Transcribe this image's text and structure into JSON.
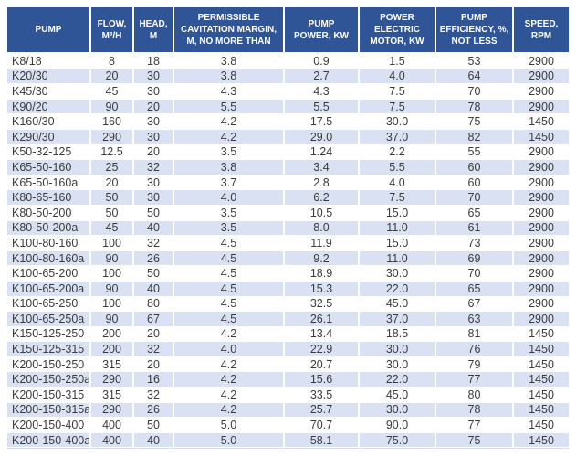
{
  "colors": {
    "header_bg": "#2f5597",
    "header_text": "#ffffff",
    "banded_row_bg": "#d9e1f2",
    "plain_row_bg": "#ffffff",
    "body_text": "#3b3b3b"
  },
  "table": {
    "headers": [
      "PUMP",
      "FLOW,\nM³/H",
      "HEAD,\nM",
      "PERMISSIBLE\nCAVITATION MARGIN,\nM, NO MORE THAN",
      "PUMP\nPOWER, KW",
      "POWER\nELECTRIC\nMOTOR, KW",
      "PUMP\nEFFICIENCY, %,\nNOT LESS",
      "SPEED,\nRPM"
    ],
    "rows": [
      [
        "K8/18",
        "8",
        "18",
        "3.8",
        "0.9",
        "1.5",
        "53",
        "2900"
      ],
      [
        "K20/30",
        "20",
        "30",
        "3.8",
        "2.7",
        "4.0",
        "64",
        "2900"
      ],
      [
        "K45/30",
        "45",
        "30",
        "4.3",
        "4.3",
        "7.5",
        "70",
        "2900"
      ],
      [
        "K90/20",
        "90",
        "20",
        "5.5",
        "5.5",
        "7.5",
        "78",
        "2900"
      ],
      [
        "K160/30",
        "160",
        "30",
        "4.2",
        "17.5",
        "30.0",
        "75",
        "1450"
      ],
      [
        "K290/30",
        "290",
        "30",
        "4.2",
        "29.0",
        "37.0",
        "82",
        "1450"
      ],
      [
        "K50-32-125",
        "12.5",
        "20",
        "3.5",
        "1.24",
        "2.2",
        "55",
        "2900"
      ],
      [
        "K65-50-160",
        "25",
        "32",
        "3.8",
        "3.4",
        "5.5",
        "60",
        "2900"
      ],
      [
        "K65-50-160a",
        "20",
        "30",
        "3.7",
        "2.8",
        "4.0",
        "60",
        "2900"
      ],
      [
        "K80-65-160",
        "50",
        "30",
        "4.0",
        "6.2",
        "7.5",
        "70",
        "2900"
      ],
      [
        "K80-50-200",
        "50",
        "50",
        "3.5",
        "10.5",
        "15.0",
        "65",
        "2900"
      ],
      [
        "K80-50-200a",
        "45",
        "40",
        "3.5",
        "8.0",
        "11.0",
        "61",
        "2900"
      ],
      [
        "K100-80-160",
        "100",
        "32",
        "4.5",
        "11.9",
        "15.0",
        "73",
        "2900"
      ],
      [
        "K100-80-160a",
        "90",
        "26",
        "4.5",
        "9.2",
        "11.0",
        "69",
        "2900"
      ],
      [
        "K100-65-200",
        "100",
        "50",
        "4.5",
        "18.9",
        "30.0",
        "70",
        "2900"
      ],
      [
        "K100-65-200a",
        "90",
        "40",
        "4.5",
        "15.3",
        "22.0",
        "65",
        "2900"
      ],
      [
        "K100-65-250",
        "100",
        "80",
        "4.5",
        "32.5",
        "45.0",
        "67",
        "2900"
      ],
      [
        "K100-65-250a",
        "90",
        "67",
        "4.5",
        "26.1",
        "37.0",
        "63",
        "2900"
      ],
      [
        "K150-125-250",
        "200",
        "20",
        "4.2",
        "13.4",
        "18.5",
        "81",
        "1450"
      ],
      [
        "K150-125-315",
        "200",
        "32",
        "4.0",
        "22.9",
        "30.0",
        "76",
        "1450"
      ],
      [
        "K200-150-250",
        "315",
        "20",
        "4.2",
        "20.7",
        "30.0",
        "79",
        "1450"
      ],
      [
        "K200-150-250a",
        "290",
        "16",
        "4.2",
        "15.6",
        "22.0",
        "77",
        "1450"
      ],
      [
        "K200-150-315",
        "315",
        "32",
        "4.2",
        "33.5",
        "45.0",
        "80",
        "1450"
      ],
      [
        "K200-150-315a",
        "290",
        "26",
        "4.2",
        "25.7",
        "30.0",
        "78",
        "1450"
      ],
      [
        "K200-150-400",
        "400",
        "50",
        "5.0",
        "70.7",
        "90.0",
        "77",
        "1450"
      ],
      [
        "K200-150-400a",
        "400",
        "40",
        "5.0",
        "58.1",
        "75.0",
        "75",
        "1450"
      ]
    ]
  }
}
